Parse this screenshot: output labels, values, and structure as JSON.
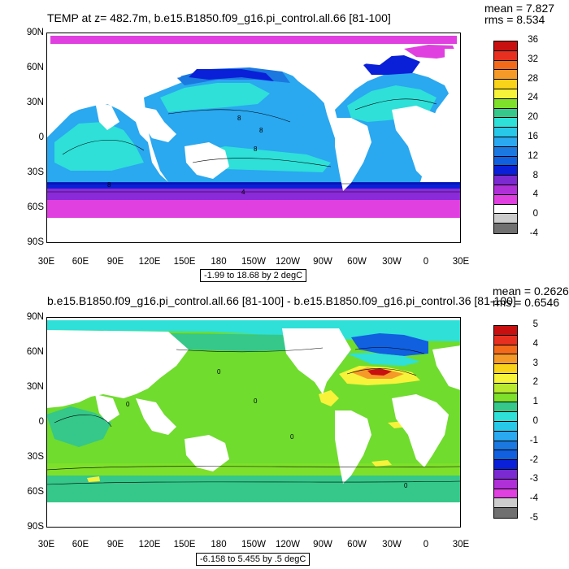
{
  "panels": [
    {
      "title": "TEMP at z= 482.7m, b.e15.B1850.f09_g16.pi_control.all.66 [81-100]",
      "mean": "mean = 7.827",
      "rms": "rms = 8.534",
      "range": "-1.99 to 18.68 by 2 degC",
      "colorbar_labels": [
        "36",
        "32",
        "28",
        "24",
        "20",
        "16",
        "12",
        "8",
        "4",
        "0",
        "-4"
      ],
      "colors": [
        "#c81010",
        "#e83020",
        "#f26a1a",
        "#f59a28",
        "#f9d21a",
        "#f7f23a",
        "#7ee02a",
        "#35c88a",
        "#2ee0d8",
        "#28c8e8",
        "#2aa8f0",
        "#1a78e0",
        "#1060e0",
        "#0a20d8",
        "#7a2ad0",
        "#b030d8",
        "#e040e0",
        "#ffffff",
        "#cccccc",
        "#707070"
      ],
      "contour_labels": [
        "8",
        "8",
        "8",
        "8",
        "4"
      ]
    },
    {
      "title": "b.e15.B1850.f09_g16.pi_control.all.66 [81-100] - b.e15.B1850.f09_g16.pi_control.36 [81-100]",
      "mean": "mean = 0.2626",
      "rms": "rms = 0.6546",
      "range": "-6.158 to 5.455 by .5 degC",
      "colorbar_labels": [
        "5",
        "4",
        "3",
        "2",
        "1",
        "0",
        "-1",
        "-2",
        "-3",
        "-4",
        "-5"
      ],
      "colors": [
        "#c81010",
        "#e83020",
        "#f26a1a",
        "#f59a28",
        "#f9d21a",
        "#f7f23a",
        "#b8e830",
        "#7ee02a",
        "#35c88a",
        "#2ee0d8",
        "#28c8e8",
        "#2aa8f0",
        "#1a78e0",
        "#1060e0",
        "#0a20d8",
        "#7a2ad0",
        "#b030d8",
        "#e040e0",
        "#cccccc",
        "#707070"
      ],
      "contour_labels": [
        "0",
        "0",
        "0",
        "0",
        "0"
      ]
    }
  ],
  "lat_labels": [
    "90N",
    "60N",
    "30N",
    "0",
    "30S",
    "60S",
    "90S"
  ],
  "lon_labels": [
    "30E",
    "60E",
    "90E",
    "120E",
    "150E",
    "180",
    "150W",
    "120W",
    "90W",
    "60W",
    "30W",
    "0",
    "30E"
  ]
}
